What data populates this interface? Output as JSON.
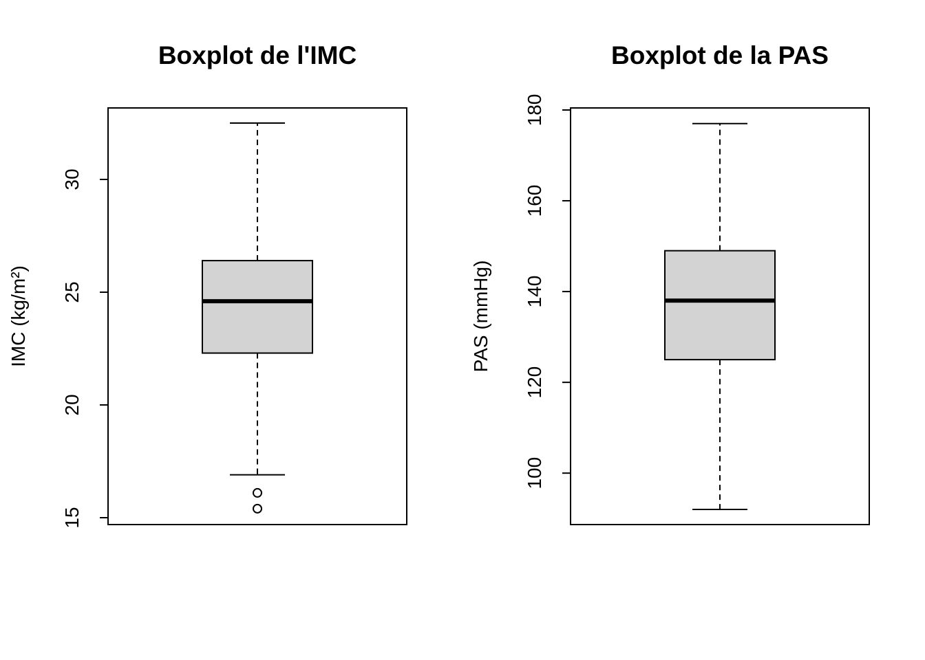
{
  "chart_data": [
    {
      "type": "boxplot",
      "title": "Boxplot de l'IMC",
      "ylabel": "IMC (kg/m²)",
      "xlabel": "",
      "ylim": [
        15,
        32.5
      ],
      "yticks": [
        15,
        20,
        25,
        30
      ],
      "grid": false,
      "box": {
        "whisker_low": 16.9,
        "q1": 22.3,
        "median": 24.6,
        "q3": 26.4,
        "whisker_high": 32.5,
        "outliers": [
          16.1,
          15.4
        ]
      },
      "fill_color": "#d3d3d3"
    },
    {
      "type": "boxplot",
      "title": "Boxplot de la PAS",
      "ylabel": "PAS (mmHg)",
      "xlabel": "",
      "ylim": [
        92,
        180
      ],
      "yticks": [
        100,
        120,
        140,
        160,
        180
      ],
      "grid": false,
      "box": {
        "whisker_low": 92,
        "q1": 125,
        "median": 138,
        "q3": 149,
        "whisker_high": 177,
        "outliers": []
      },
      "fill_color": "#d3d3d3"
    }
  ]
}
